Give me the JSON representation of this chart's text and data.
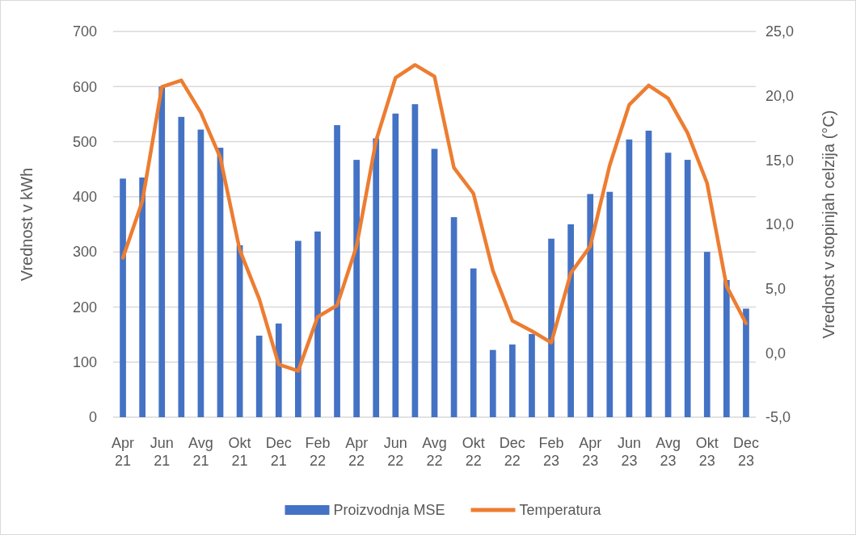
{
  "chart_data": {
    "type": "bar",
    "ylabel": "Vrednost v kWh",
    "y2label": "Vrednost v stopinjah celzija (°C)",
    "categories": [
      "Apr 21",
      null,
      "Jun 21",
      null,
      "Avg 21",
      null,
      "Okt 21",
      null,
      "Dec 21",
      null,
      "Feb 22",
      null,
      "Apr 22",
      null,
      "Jun 22",
      null,
      "Avg 22",
      null,
      "Okt 22",
      null,
      "Dec 22",
      null,
      "Feb 23",
      null,
      "Apr 23",
      null,
      "Jun 23",
      null,
      "Avg 23",
      null,
      "Okt 23",
      null,
      "Dec 23"
    ],
    "series": [
      {
        "name": "Proizvodnja MSE",
        "color": "#4472c4",
        "values": [
          433,
          435,
          600,
          545,
          522,
          489,
          312,
          148,
          170,
          320,
          337,
          530,
          467,
          506,
          551,
          568,
          487,
          363,
          270,
          122,
          132,
          151,
          324,
          350,
          405,
          409,
          504,
          520,
          480,
          467,
          300,
          249,
          197
        ]
      },
      {
        "name": "Temperatura",
        "type": "line",
        "axis": "y2",
        "color": "#ed7d31",
        "values": [
          7.4,
          11.8,
          20.7,
          21.2,
          18.7,
          15.2,
          8.0,
          4.2,
          -0.9,
          -1.4,
          2.8,
          3.7,
          8.3,
          16.5,
          21.4,
          22.4,
          21.5,
          14.4,
          12.4,
          6.4,
          2.5,
          1.7,
          0.8,
          6.2,
          8.3,
          14.6,
          19.3,
          20.8,
          19.8,
          17.1,
          13.2,
          5.2,
          2.3
        ]
      }
    ],
    "ylim": [
      0,
      700
    ],
    "yticks": [
      0,
      100,
      200,
      300,
      400,
      500,
      600,
      700
    ],
    "y2lim": [
      -5,
      25
    ],
    "y2ticks": [
      {
        "value": -5,
        "label": "-5,0"
      },
      {
        "value": 0,
        "label": "0,0"
      },
      {
        "value": 5,
        "label": "5,0"
      },
      {
        "value": 10,
        "label": "10,0"
      },
      {
        "value": 15,
        "label": "15,0"
      },
      {
        "value": 20,
        "label": "20,0"
      },
      {
        "value": 25,
        "label": "25,0"
      }
    ],
    "grid": "y",
    "legend": "bottom",
    "marker": "none",
    "line_style": "solid"
  }
}
